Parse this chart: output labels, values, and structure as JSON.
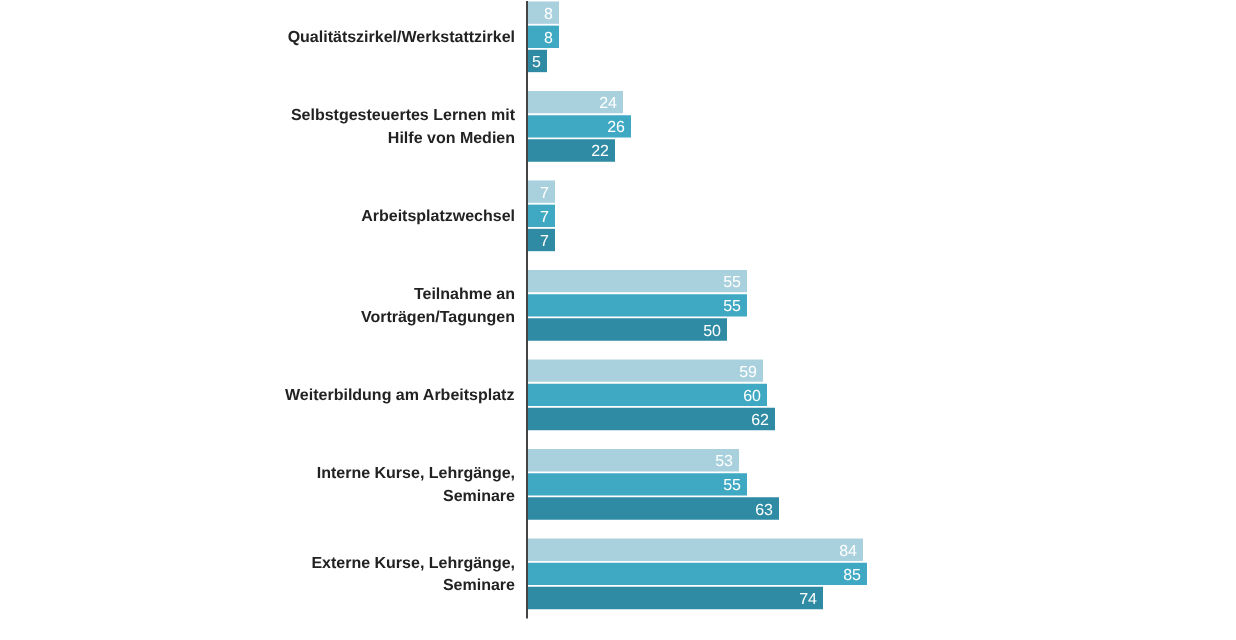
{
  "chart_data": {
    "type": "bar",
    "orientation": "horizontal",
    "data_labels": true,
    "categories": [
      "Qualitätszirkel/Werkstattzirkel",
      "Selbstgesteuertes Lernen mit Hilfe von Medien",
      "Arbeitsplatzwechsel",
      "Teilnahme an Vorträgen/Tagungen",
      "Weiterbildung am Arbeitsplatz",
      "Interne Kurse, Lehrgänge, Seminare",
      "Externe Kurse, Lehrgänge, Seminare"
    ],
    "series": [
      {
        "color": "#a9d1dd",
        "values": [
          8,
          24,
          7,
          55,
          59,
          53,
          84
        ]
      },
      {
        "color": "#3fa9c4",
        "values": [
          8,
          26,
          7,
          55,
          60,
          55,
          85
        ]
      },
      {
        "color": "#2f8ba3",
        "values": [
          5,
          22,
          7,
          50,
          62,
          63,
          74
        ]
      }
    ]
  }
}
